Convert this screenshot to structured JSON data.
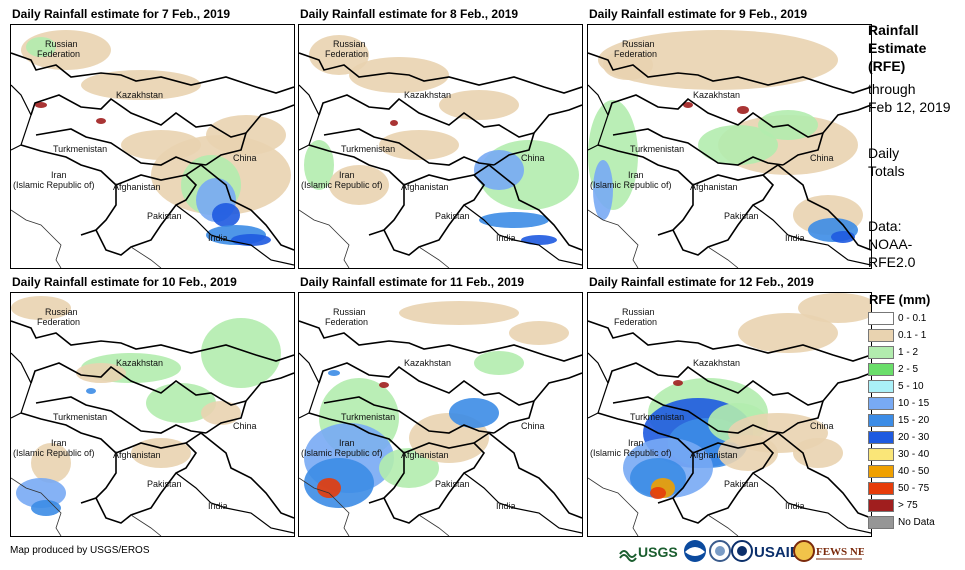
{
  "panels": [
    {
      "title": "Daily Rainfall estimate for 7 Feb., 2019"
    },
    {
      "title": "Daily Rainfall estimate for 8 Feb., 2019"
    },
    {
      "title": "Daily Rainfall estimate for 9 Feb., 2019"
    },
    {
      "title": "Daily Rainfall estimate for 10 Feb., 2019"
    },
    {
      "title": "Daily Rainfall estimate for 11 Feb., 2019"
    },
    {
      "title": "Daily Rainfall estimate for 12 Feb., 2019"
    }
  ],
  "map_labels": {
    "russia_1": "Russian",
    "russia_2": "Federation",
    "kazakhstan": "Kazakhstan",
    "turkmenistan": "Turkmenistan",
    "iran_1": "Iran",
    "iran_2": "(Islamic Republic of)",
    "afghanistan": "Afghanistan",
    "pakistan": "Pakistan",
    "china": "China",
    "india": "India"
  },
  "sidebar": {
    "line1": "Rainfall",
    "line2": "Estimate",
    "line3": "(RFE)",
    "line4": "through",
    "line5": "Feb 12, 2019",
    "line6": "Daily",
    "line7": "Totals",
    "line8": "Data:",
    "line9": "NOAA-",
    "line10": "RFE2.0"
  },
  "legend": {
    "title": "RFE (mm)",
    "items": [
      {
        "label": "0 - 0.1",
        "color": "#ffffff"
      },
      {
        "label": "0.1 - 1",
        "color": "#e9d3b0"
      },
      {
        "label": "1 - 2",
        "color": "#b2ecae"
      },
      {
        "label": "2 - 5",
        "color": "#6ade6a"
      },
      {
        "label": "5 - 10",
        "color": "#aaf0f8"
      },
      {
        "label": "10 - 15",
        "color": "#78aaf4"
      },
      {
        "label": "15 - 20",
        "color": "#3c8ce6"
      },
      {
        "label": "20 - 30",
        "color": "#1e5ae0"
      },
      {
        "label": "30 - 40",
        "color": "#fae678"
      },
      {
        "label": "40 - 50",
        "color": "#f0a000"
      },
      {
        "label": "50 - 75",
        "color": "#e63c0a"
      },
      {
        "label": "> 75",
        "color": "#a01e1e"
      },
      {
        "label": "No Data",
        "color": "#969696"
      }
    ]
  },
  "footer": {
    "credit": "Map produced by USGS/EROS"
  },
  "logos": {
    "usgs": "USGS",
    "usaid": "USAID",
    "fews": "FEWS NET"
  }
}
